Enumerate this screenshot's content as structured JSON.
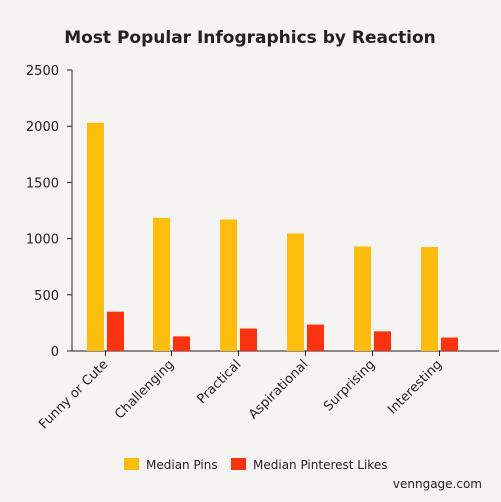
{
  "chart_data": {
    "type": "bar",
    "title": "Most Popular Infographics by Reaction",
    "categories": [
      "Funny or Cute",
      "Challenging",
      "Practical",
      "Aspirational",
      "Surprising",
      "Interesting"
    ],
    "series": [
      {
        "name": "Median Pins",
        "color": "#fdbd0e",
        "values": [
          2030,
          1185,
          1170,
          1045,
          930,
          925
        ]
      },
      {
        "name": "Median Pinterest Likes",
        "color": "#f9330f",
        "values": [
          350,
          130,
          200,
          235,
          175,
          120
        ]
      }
    ],
    "ylim": [
      0,
      2500
    ],
    "yticks": [
      0,
      500,
      1000,
      1500,
      2000,
      2500
    ],
    "xlabel": "",
    "ylabel": "",
    "grid": false,
    "legend_position": "bottom-center"
  },
  "source": "venngage.com"
}
